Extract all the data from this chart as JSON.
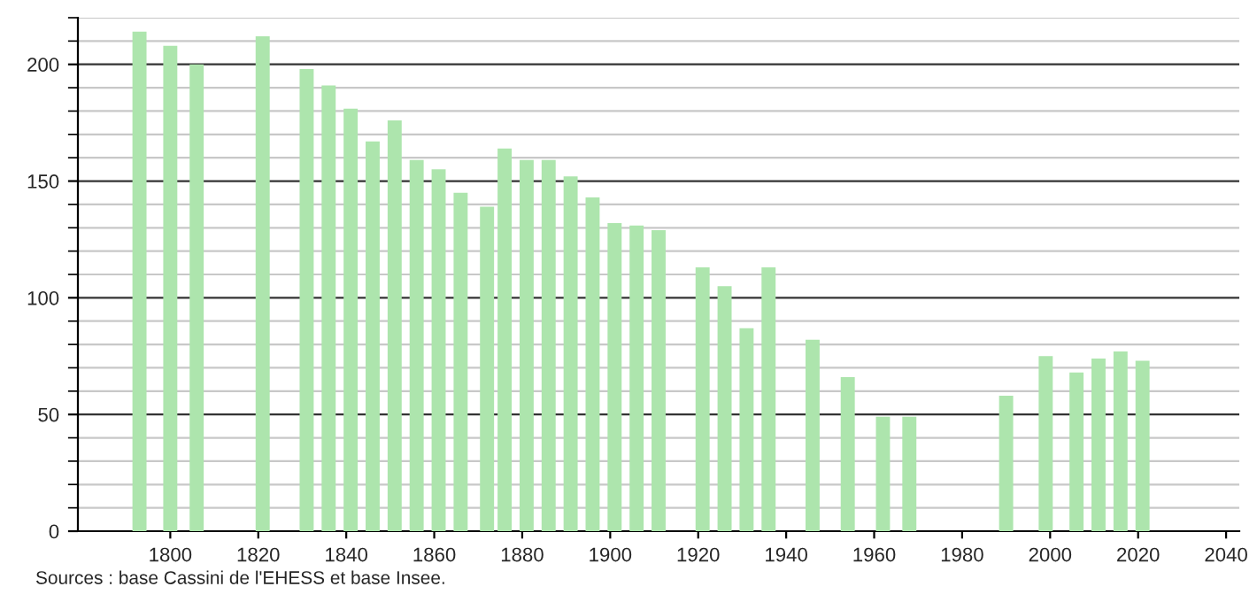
{
  "chart_data": {
    "type": "bar",
    "x": [
      1793,
      1800,
      1806,
      1821,
      1831,
      1836,
      1841,
      1846,
      1851,
      1856,
      1861,
      1866,
      1872,
      1876,
      1881,
      1886,
      1891,
      1896,
      1901,
      1906,
      1911,
      1921,
      1926,
      1931,
      1936,
      1946,
      1954,
      1962,
      1968,
      1990,
      1999,
      2006,
      2011,
      2016,
      2021
    ],
    "values": [
      214,
      208,
      200,
      212,
      198,
      191,
      181,
      167,
      176,
      159,
      155,
      145,
      139,
      164,
      159,
      159,
      152,
      143,
      132,
      131,
      129,
      113,
      105,
      87,
      113,
      82,
      66,
      49,
      49,
      58,
      75,
      68,
      74,
      77,
      73
    ],
    "color": "#ade5ad",
    "xlim": [
      1779,
      2043
    ],
    "xticks": [
      1800,
      1820,
      1840,
      1860,
      1880,
      1900,
      1920,
      1940,
      1960,
      1980,
      2000,
      2020,
      2040
    ],
    "ylim": [
      0,
      220
    ],
    "yticks": [
      0,
      50,
      100,
      150,
      200
    ],
    "grid": "y",
    "annotations": [
      "Sources : base Cassini de l'EHESS et base Insee."
    ]
  }
}
